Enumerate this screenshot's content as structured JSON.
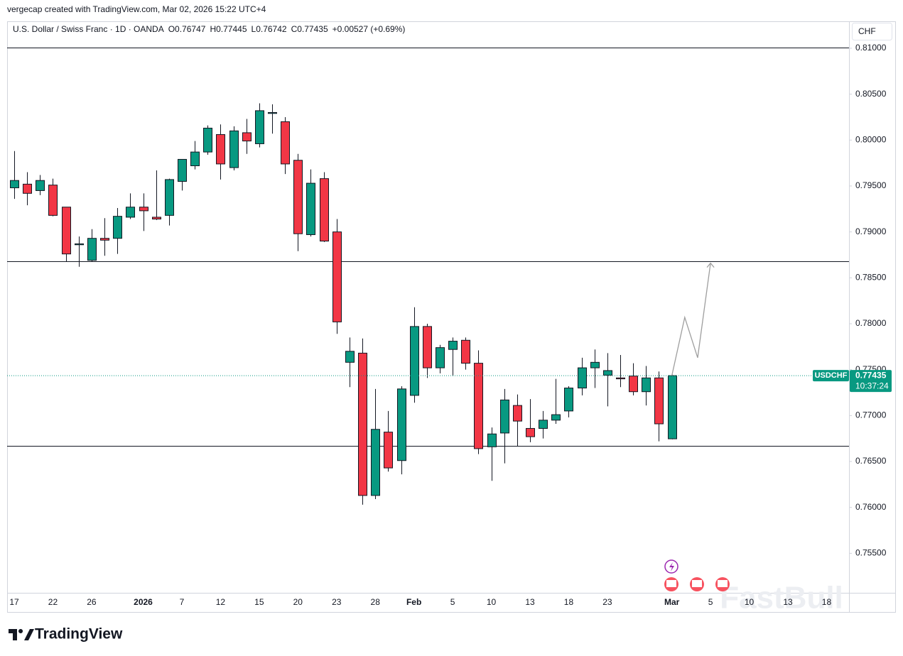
{
  "credit": "vergecap created with TradingView.com, Mar 02, 2026 15:22 UTC+4",
  "brand": "TradingView",
  "watermark": "FastBull",
  "chart_data": {
    "type": "candlestick",
    "title": "U.S. Dollar / Swiss Franc · 1D · OANDA",
    "ohlc_legend": [
      {
        "key": "O",
        "value": "0.76747"
      },
      {
        "key": "H",
        "value": "0.77445"
      },
      {
        "key": "L",
        "value": "0.76742"
      },
      {
        "key": "C",
        "value": "0.77435"
      }
    ],
    "change": "+0.00527 (+0.69%)",
    "currency": "CHF",
    "symbol": "USDCHF",
    "last_price_label": "0.77435",
    "countdown": "10:37:24",
    "up_color": "#089981",
    "down_color": "#f23645",
    "categories": [
      "17",
      null,
      null,
      "22",
      null,
      null,
      "26",
      null,
      null,
      null,
      "2026",
      null,
      null,
      "7",
      null,
      null,
      "12",
      null,
      null,
      "15",
      null,
      null,
      "20",
      null,
      null,
      "23",
      null,
      null,
      "28",
      null,
      null,
      "Feb",
      null,
      null,
      "5",
      null,
      null,
      "10",
      null,
      null,
      "13",
      null,
      null,
      "18",
      null,
      null,
      "23",
      null,
      null,
      null,
      null,
      "Mar",
      null,
      null,
      "5",
      null,
      null,
      "10",
      null,
      null,
      "13",
      null,
      null,
      "18"
    ],
    "open": [
      0.7948,
      0.7952,
      0.7945,
      0.7951,
      0.7927,
      0.7886,
      0.7869,
      0.7893,
      0.7893,
      0.7916,
      0.7927,
      0.7916,
      0.7918,
      0.7955,
      0.7972,
      0.7987,
      0.8006,
      0.797,
      0.8008,
      0.7996,
      0.8029,
      0.802,
      0.7978,
      0.7897,
      0.7958,
      0.79,
      0.7758,
      0.7768,
      0.7613,
      0.7682,
      0.7651,
      0.7722,
      0.7797,
      0.7752,
      0.7772,
      0.7782,
      0.7757,
      0.7666,
      0.7681,
      0.7711,
      0.7686,
      0.7686,
      0.7695,
      0.7705,
      0.773,
      0.7752,
      0.7744,
      0.7741,
      0.7743,
      0.7726,
      0.7741,
      0.76747,
      null,
      null,
      null,
      null,
      null,
      null,
      null,
      null,
      null,
      null,
      null,
      null
    ],
    "high": [
      0.7988,
      0.7965,
      0.7962,
      0.7958,
      0.7927,
      0.7895,
      0.7903,
      0.7915,
      0.7926,
      0.7942,
      0.7942,
      0.7967,
      0.7958,
      0.7979,
      0.7999,
      0.8016,
      0.8017,
      0.8015,
      0.8023,
      0.804,
      0.8039,
      0.8025,
      0.7985,
      0.7968,
      0.7965,
      0.7914,
      0.7785,
      0.7784,
      0.7729,
      0.7705,
      0.7732,
      0.7818,
      0.78,
      0.7777,
      0.7785,
      0.7785,
      0.7771,
      0.7687,
      0.7729,
      0.7723,
      0.7718,
      0.7705,
      0.774,
      0.7732,
      0.7763,
      0.7772,
      0.7768,
      0.7766,
      0.7757,
      0.7754,
      0.7748,
      0.77445,
      null,
      null,
      null,
      null,
      null,
      null,
      null,
      null,
      null,
      null,
      null,
      null
    ],
    "low": [
      0.7936,
      0.7929,
      0.794,
      0.7917,
      0.7868,
      0.7862,
      0.7868,
      0.7874,
      0.7876,
      0.7914,
      0.7901,
      0.7913,
      0.7907,
      0.7945,
      0.7968,
      0.7984,
      0.7957,
      0.7967,
      0.7985,
      0.7992,
      0.8007,
      0.7963,
      0.7879,
      0.7895,
      0.7889,
      0.7789,
      0.7731,
      0.7603,
      0.7609,
      0.7639,
      0.7636,
      0.7714,
      0.7741,
      0.7746,
      0.7743,
      0.775,
      0.7658,
      0.7629,
      0.7648,
      0.7667,
      0.7671,
      0.7675,
      0.7691,
      0.7698,
      0.7722,
      0.773,
      0.771,
      0.7731,
      0.7722,
      0.7711,
      0.7672,
      0.76742,
      null,
      null,
      null,
      null,
      null,
      null,
      null,
      null,
      null,
      null,
      null,
      null
    ],
    "close": [
      0.7956,
      0.7942,
      0.7956,
      0.7918,
      0.7876,
      0.7887,
      0.7893,
      0.7891,
      0.7917,
      0.7927,
      0.7923,
      0.7914,
      0.7957,
      0.7979,
      0.7987,
      0.8013,
      0.7974,
      0.801,
      0.7999,
      0.8032,
      0.803,
      0.7974,
      0.7898,
      0.7953,
      0.789,
      0.7802,
      0.777,
      0.7613,
      0.7685,
      0.7643,
      0.7729,
      0.7797,
      0.7752,
      0.7774,
      0.7781,
      0.7757,
      0.7664,
      0.768,
      0.7717,
      0.7694,
      0.7677,
      0.7695,
      0.7701,
      0.773,
      0.7752,
      0.7758,
      0.7749,
      0.774,
      0.7726,
      0.7741,
      0.7691,
      0.77435,
      null,
      null,
      null,
      null,
      null,
      null,
      null,
      null,
      null,
      null,
      null,
      null
    ],
    "projection": [
      null,
      null,
      null,
      null,
      null,
      null,
      null,
      null,
      null,
      null,
      null,
      null,
      null,
      null,
      null,
      null,
      null,
      null,
      null,
      null,
      null,
      null,
      null,
      null,
      null,
      null,
      null,
      null,
      null,
      null,
      null,
      null,
      null,
      null,
      null,
      null,
      null,
      null,
      null,
      null,
      null,
      null,
      null,
      null,
      null,
      null,
      null,
      null,
      null,
      null,
      null,
      0.77435,
      0.7807,
      0.7763,
      0.7866,
      null,
      null,
      null,
      null,
      null,
      null,
      null,
      null,
      null
    ],
    "projection_color": "#9e9e9e",
    "levels": [
      0.8101,
      0.7868,
      0.7667
    ],
    "level_color": "#131722",
    "ylim": [
      0.7507,
      0.811
    ],
    "yticks": [
      {
        "value": 0.81,
        "label": "0.81000"
      },
      {
        "value": 0.805,
        "label": "0.80500"
      },
      {
        "value": 0.8,
        "label": "0.80000"
      },
      {
        "value": 0.795,
        "label": "0.79500"
      },
      {
        "value": 0.79,
        "label": "0.79000"
      },
      {
        "value": 0.785,
        "label": "0.78500"
      },
      {
        "value": 0.78,
        "label": "0.78000"
      },
      {
        "value": 0.775,
        "label": "0.77500"
      },
      {
        "value": 0.77,
        "label": "0.77000"
      },
      {
        "value": 0.765,
        "label": "0.76500"
      },
      {
        "value": 0.76,
        "label": "0.76000"
      },
      {
        "value": 0.755,
        "label": "0.75500"
      }
    ],
    "grid": false
  }
}
